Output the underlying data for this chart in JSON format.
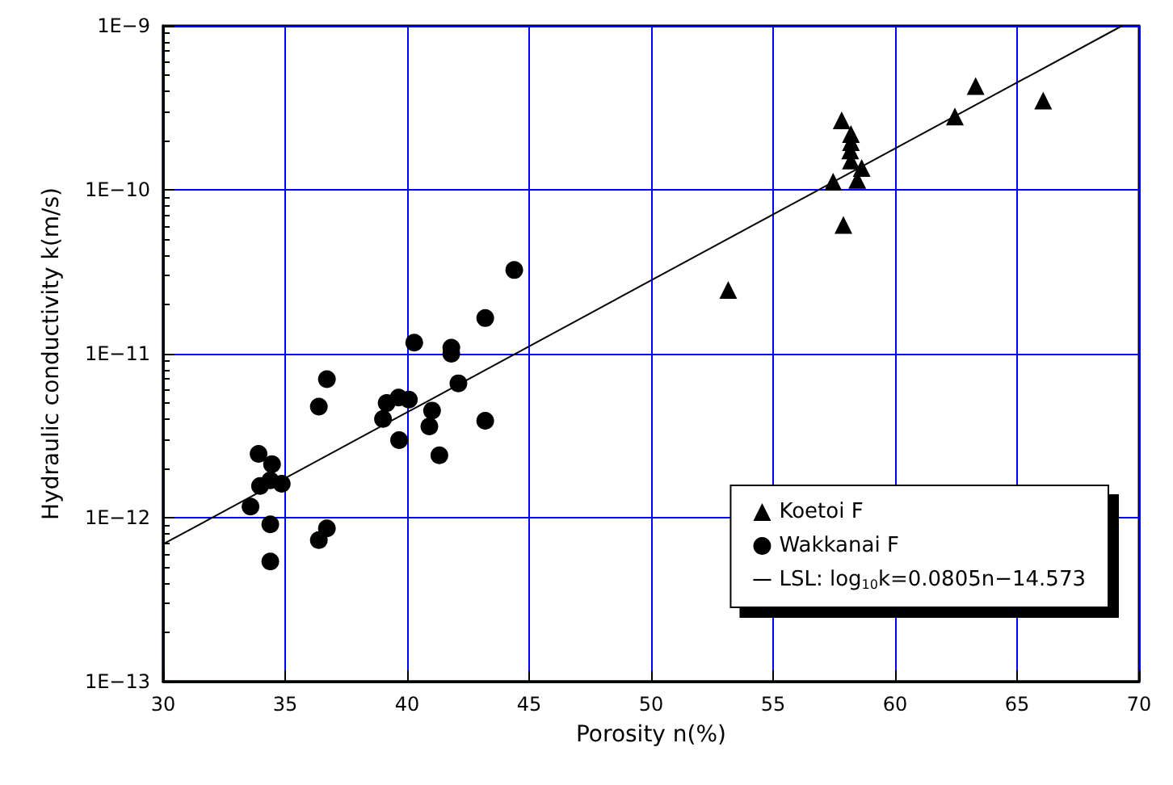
{
  "chart_data": {
    "type": "scatter",
    "xlabel": "Porosity n(%)",
    "ylabel": "Hydraulic conductivity k(m/s)",
    "xlim": [
      30,
      70
    ],
    "xticks": [
      30,
      35,
      40,
      45,
      50,
      55,
      60,
      65,
      70
    ],
    "ylim": [
      1e-13,
      1e-09
    ],
    "yticks": [
      {
        "value": 1e-13,
        "label": "1E−13"
      },
      {
        "value": 1e-12,
        "label": "1E−12"
      },
      {
        "value": 1e-11,
        "label": "1E−11"
      },
      {
        "value": 1e-10,
        "label": "1E−10"
      },
      {
        "value": 1e-09,
        "label": "1E−9"
      }
    ],
    "log": "y",
    "grid": true,
    "legend": "bottom right",
    "series": [
      {
        "name": "Koetoi F",
        "color": "#000000",
        "marker": "triangle",
        "x": [
          53.16,
          57.81,
          57.46,
          57.88,
          58.19,
          58.19,
          58.16,
          58.19,
          58.63,
          58.45,
          62.45,
          63.3,
          66.07
        ],
        "values": [
          2.45e-11,
          2.65e-10,
          1.12e-10,
          6.1e-11,
          2.19e-10,
          1.95e-10,
          1.74e-10,
          1.51e-10,
          1.36e-10,
          1.15e-10,
          2.8e-10,
          4.3e-10,
          3.5e-10
        ]
      },
      {
        "name": "Wakkanai F",
        "color": "#000000",
        "marker": "circle",
        "x": [
          33.58,
          33.91,
          33.97,
          34.46,
          34.39,
          34.86,
          34.39,
          34.39,
          36.38,
          36.71,
          36.38,
          36.71,
          39.01,
          39.16,
          39.65,
          40.07,
          39.67,
          40.29,
          41.02,
          40.91,
          41.32,
          41.81,
          41.81,
          42.1,
          43.2,
          43.2,
          44.39
        ],
        "values": [
          1.17e-12,
          2.45e-12,
          1.56e-12,
          2.12e-12,
          1.69e-12,
          1.61e-12,
          9.1e-13,
          5.4e-13,
          4.76e-12,
          7e-12,
          7.3e-13,
          8.6e-13,
          4e-12,
          5e-12,
          5.4e-12,
          5.25e-12,
          2.97e-12,
          1.17e-11,
          4.5e-12,
          3.6e-12,
          2.4e-12,
          1.09e-11,
          1e-11,
          6.6e-12,
          1.65e-11,
          3.9e-12,
          3.24e-11
        ]
      },
      {
        "name": "LSL: log$_{10}$k=0.0805n−14.573",
        "type": "line",
        "color": "#000000",
        "marker": "none",
        "line_style": "solid",
        "x": [
          30,
          69.3
        ],
        "values": [
          6.9e-13,
          1e-09
        ]
      }
    ]
  }
}
